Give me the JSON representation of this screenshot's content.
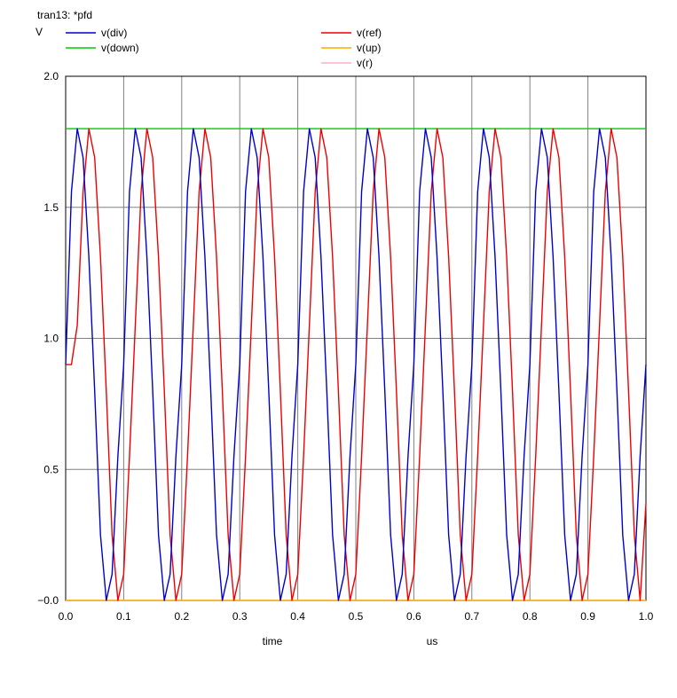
{
  "chart_data": {
    "type": "line",
    "title": "tran13: *pfd",
    "ylabel": "V",
    "xlabel": "time",
    "xunit": "us",
    "xlim": [
      0.0,
      1.0
    ],
    "ylim": [
      0.0,
      2.0
    ],
    "x_ticks": [
      0.0,
      0.1,
      0.2,
      0.3,
      0.4,
      0.5,
      0.6,
      0.7,
      0.8,
      0.9,
      1.0
    ],
    "x_tick_labels": [
      "0.0",
      "0.1",
      "0.2",
      "0.3",
      "0.4",
      "0.5",
      "0.6",
      "0.7",
      "0.8",
      "0.9",
      "1.0"
    ],
    "y_ticks": [
      0.0,
      0.5,
      1.0,
      1.5,
      2.0
    ],
    "y_tick_labels": [
      "−0.0",
      "0.5",
      "1.0",
      "1.5",
      "2.0"
    ],
    "grid": true,
    "legend_position": "top",
    "series": [
      {
        "name": "v(div)",
        "color": "#0000cc",
        "x": [
          0,
          0.01,
          0.02,
          0.03,
          0.04,
          0.05,
          0.06,
          0.07,
          0.08,
          0.09,
          0.1,
          0.11,
          0.12,
          0.13,
          0.14,
          0.15,
          0.16,
          0.17,
          0.18,
          0.19,
          0.2,
          0.21,
          0.22,
          0.23,
          0.24,
          0.25,
          0.26,
          0.27,
          0.28,
          0.29,
          0.3,
          0.31,
          0.32,
          0.33,
          0.34,
          0.35,
          0.36,
          0.37,
          0.38,
          0.39,
          0.4,
          0.41,
          0.42,
          0.43,
          0.44,
          0.45,
          0.46,
          0.47,
          0.48,
          0.49,
          0.5,
          0.51,
          0.52,
          0.53,
          0.54,
          0.55,
          0.56,
          0.57,
          0.58,
          0.59,
          0.6,
          0.61,
          0.62,
          0.63,
          0.64,
          0.65,
          0.66,
          0.67,
          0.68,
          0.69,
          0.7,
          0.71,
          0.72,
          0.73,
          0.74,
          0.75,
          0.76,
          0.77,
          0.78,
          0.79,
          0.8,
          0.81,
          0.82,
          0.83,
          0.84,
          0.85,
          0.86,
          0.87,
          0.88,
          0.89,
          0.9,
          0.91,
          0.92,
          0.93,
          0.94,
          0.95,
          0.96,
          0.97,
          0.98,
          0.99,
          1.0
        ],
        "values": [
          0.9,
          1.56,
          1.8,
          1.69,
          1.31,
          0.8,
          0.25,
          0.0,
          0.1,
          0.55,
          0.9,
          1.56,
          1.8,
          1.69,
          1.31,
          0.8,
          0.25,
          0.0,
          0.1,
          0.55,
          0.9,
          1.56,
          1.8,
          1.69,
          1.31,
          0.8,
          0.25,
          0.0,
          0.1,
          0.55,
          0.9,
          1.56,
          1.8,
          1.69,
          1.31,
          0.8,
          0.25,
          0.0,
          0.1,
          0.55,
          0.9,
          1.56,
          1.8,
          1.69,
          1.31,
          0.8,
          0.25,
          0.0,
          0.1,
          0.55,
          0.9,
          1.56,
          1.8,
          1.69,
          1.31,
          0.8,
          0.25,
          0.0,
          0.1,
          0.55,
          0.9,
          1.56,
          1.8,
          1.69,
          1.31,
          0.8,
          0.25,
          0.0,
          0.1,
          0.55,
          0.9,
          1.56,
          1.8,
          1.69,
          1.31,
          0.8,
          0.25,
          0.0,
          0.1,
          0.55,
          0.9,
          1.56,
          1.8,
          1.69,
          1.31,
          0.8,
          0.25,
          0.0,
          0.1,
          0.55,
          0.9,
          1.56,
          1.8,
          1.69,
          1.31,
          0.8,
          0.25,
          0.0,
          0.1,
          0.55,
          0.9
        ]
      },
      {
        "name": "v(ref)",
        "color": "#ee0000",
        "x": [
          0,
          0.01,
          0.02,
          0.03,
          0.04,
          0.05,
          0.06,
          0.07,
          0.08,
          0.09,
          0.1,
          0.11,
          0.12,
          0.13,
          0.14,
          0.15,
          0.16,
          0.17,
          0.18,
          0.19,
          0.2,
          0.21,
          0.22,
          0.23,
          0.24,
          0.25,
          0.26,
          0.27,
          0.28,
          0.29,
          0.3,
          0.31,
          0.32,
          0.33,
          0.34,
          0.35,
          0.36,
          0.37,
          0.38,
          0.39,
          0.4,
          0.41,
          0.42,
          0.43,
          0.44,
          0.45,
          0.46,
          0.47,
          0.48,
          0.49,
          0.5,
          0.51,
          0.52,
          0.53,
          0.54,
          0.55,
          0.56,
          0.57,
          0.58,
          0.59,
          0.6,
          0.61,
          0.62,
          0.63,
          0.64,
          0.65,
          0.66,
          0.67,
          0.68,
          0.69,
          0.7,
          0.71,
          0.72,
          0.73,
          0.74,
          0.75,
          0.76,
          0.77,
          0.78,
          0.79,
          0.8,
          0.81,
          0.82,
          0.83,
          0.84,
          0.85,
          0.86,
          0.87,
          0.88,
          0.89,
          0.9,
          0.91,
          0.92,
          0.93,
          0.94,
          0.95,
          0.96,
          0.97,
          0.98,
          0.99,
          1.0
        ],
        "values": [
          0.9,
          0.9,
          1.05,
          1.56,
          1.8,
          1.69,
          1.31,
          0.8,
          0.25,
          0.0,
          0.1,
          0.55,
          1.05,
          1.56,
          1.8,
          1.69,
          1.31,
          0.8,
          0.25,
          0.0,
          0.1,
          0.55,
          1.05,
          1.56,
          1.8,
          1.69,
          1.31,
          0.8,
          0.25,
          0.0,
          0.1,
          0.55,
          1.05,
          1.56,
          1.8,
          1.69,
          1.31,
          0.8,
          0.25,
          0.0,
          0.1,
          0.55,
          1.05,
          1.56,
          1.8,
          1.69,
          1.31,
          0.8,
          0.25,
          0.0,
          0.1,
          0.55,
          1.05,
          1.56,
          1.8,
          1.69,
          1.31,
          0.8,
          0.25,
          0.0,
          0.1,
          0.55,
          1.05,
          1.56,
          1.8,
          1.69,
          1.31,
          0.8,
          0.25,
          0.0,
          0.1,
          0.55,
          1.05,
          1.56,
          1.8,
          1.69,
          1.31,
          0.8,
          0.25,
          0.0,
          0.1,
          0.55,
          1.05,
          1.56,
          1.8,
          1.69,
          1.31,
          0.8,
          0.25,
          0.0,
          0.1,
          0.55,
          1.05,
          1.56,
          1.8,
          1.69,
          1.31,
          0.8,
          0.25,
          0.0,
          0.37
        ]
      },
      {
        "name": "v(down)",
        "color": "#00cc00",
        "x": [
          0,
          1.0
        ],
        "values": [
          1.8,
          1.8
        ]
      },
      {
        "name": "v(up)",
        "color": "#ffaa00",
        "x": [
          0,
          1.0
        ],
        "values": [
          0.0,
          0.0
        ]
      },
      {
        "name": "v(r)",
        "color": "#ffb0c8",
        "x": [
          0,
          1.0
        ],
        "values": [
          0.0,
          0.0
        ]
      }
    ]
  }
}
